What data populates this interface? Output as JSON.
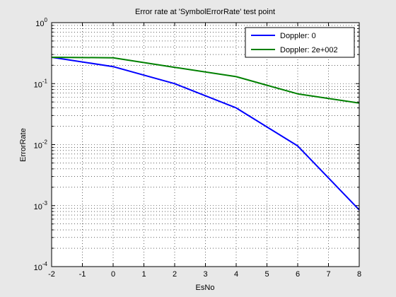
{
  "chart_data": {
    "type": "line",
    "title": "Error rate at 'SymbolErrorRate' test point",
    "xlabel": "EsNo",
    "ylabel": "ErrorRate",
    "xlim": [
      -2,
      8
    ],
    "ylim": [
      0.0001,
      1
    ],
    "yscale": "log",
    "grid": "on (dotted, major and minor)",
    "legend_position": "top-right",
    "x_ticks": [
      "-2",
      "-1",
      "0",
      "1",
      "2",
      "3",
      "4",
      "5",
      "6",
      "7",
      "8"
    ],
    "y_ticks": [
      {
        "base": "10",
        "exp": "-4"
      },
      {
        "base": "10",
        "exp": "-3"
      },
      {
        "base": "10",
        "exp": "-2"
      },
      {
        "base": "10",
        "exp": "-1"
      },
      {
        "base": "10",
        "exp": "0"
      }
    ],
    "x": [
      -2,
      0,
      2,
      4,
      6,
      8
    ],
    "series": [
      {
        "name": "Doppler: 0",
        "color": "#0000ff",
        "values": [
          0.27,
          0.19,
          0.1,
          0.04,
          0.0095,
          0.00085
        ]
      },
      {
        "name": "Doppler: 2e+002",
        "color": "#008000",
        "values": [
          0.27,
          0.265,
          0.185,
          0.13,
          0.068,
          0.048
        ]
      }
    ]
  }
}
